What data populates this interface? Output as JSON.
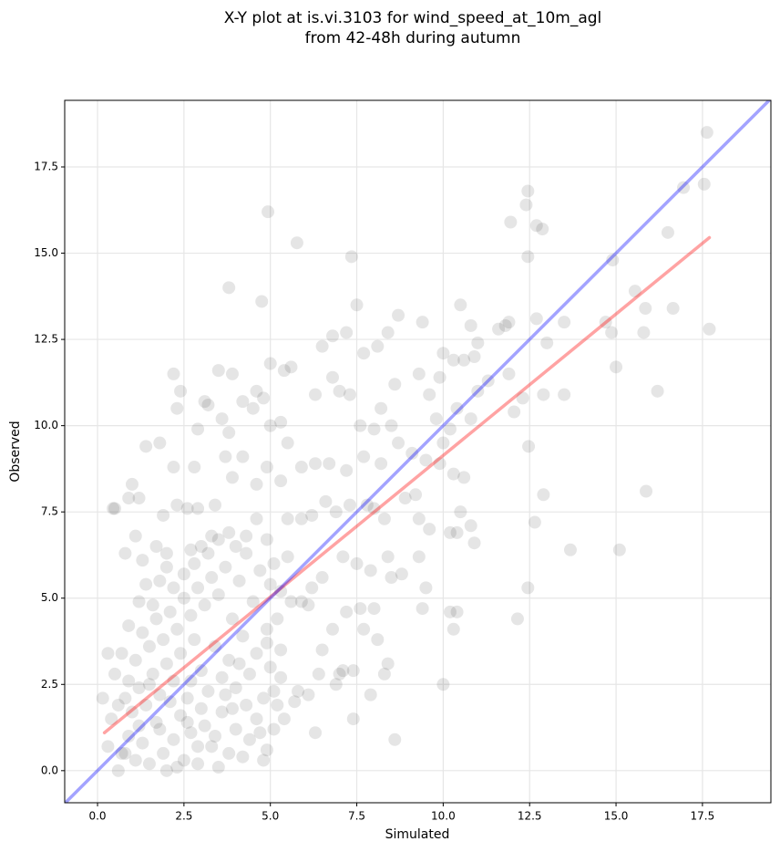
{
  "chart_data": {
    "type": "scatter",
    "title": [
      "X-Y plot at is.vi.3103 for wind_speed_at_10m_agl",
      "from 42-48h during autumn"
    ],
    "xlabel": "Simulated",
    "ylabel": "Observed",
    "xlim": [
      -0.95,
      19.48
    ],
    "ylim": [
      -0.93,
      19.43
    ],
    "xticks": [
      {
        "value": 0,
        "label": "0.0"
      },
      2.5,
      {
        "value": 5,
        "label": "5.0"
      },
      7.5,
      {
        "value": 10,
        "label": "10.0"
      },
      12.5,
      {
        "value": 15,
        "label": "15.0"
      },
      17.5
    ],
    "yticks": [
      {
        "value": 0,
        "label": "0.0"
      },
      2.5,
      {
        "value": 5,
        "label": "5.0"
      },
      7.5,
      {
        "value": 10,
        "label": "10.0"
      },
      12.5,
      {
        "value": 15,
        "label": "15.0"
      },
      17.5
    ],
    "grid": true,
    "series": [
      {
        "type": "scatter",
        "color": "#0000001a",
        "x": [
          17.63,
          17.55,
          17.7,
          16.95,
          16.65,
          16.5,
          15.85,
          15.8,
          15.87,
          16.2,
          15.55,
          14.9,
          14.87,
          15.0,
          15.1,
          14.7,
          13.68,
          13.5,
          13.5,
          13.0,
          12.9,
          12.9,
          12.87,
          12.7,
          12.65,
          12.45,
          12.4,
          12.45,
          12.47,
          12.45,
          12.15,
          11.95,
          12.05,
          10.0,
          8.6,
          4.93,
          5.77,
          7.35,
          3.8,
          4.75,
          7.5,
          2.2,
          0.15,
          0.45,
          1.4,
          6.5,
          6.8,
          7.2,
          7.7,
          8.1,
          8.4,
          8.7,
          9.4,
          10.0,
          10.5,
          10.8,
          11.0,
          11.3,
          11.6,
          11.8,
          11.9,
          12.7,
          12.3,
          11.9,
          10.3,
          10.6,
          10.9,
          11.0,
          10.8,
          10.4,
          10.2,
          10.0,
          9.8,
          9.6,
          9.9,
          9.3,
          8.6,
          8.2,
          8.5,
          8.0,
          7.6,
          7.3,
          7.0,
          6.8,
          6.3,
          5.6,
          5.4,
          5.0,
          4.6,
          4.2,
          3.9,
          3.5,
          3.1,
          3.6,
          3.8,
          4.5,
          4.8,
          5.0,
          5.3,
          5.5,
          5.9,
          6.3,
          6.7,
          7.2,
          7.7,
          8.2,
          8.7,
          9.1,
          9.5,
          9.9,
          10.3,
          10.6,
          10.8,
          10.5,
          10.4,
          10.9,
          10.2,
          9.6,
          9.3,
          9.2,
          8.9,
          8.3,
          8.0,
          7.8,
          7.3,
          6.9,
          6.6,
          6.2,
          5.9,
          5.5,
          5.3,
          4.9,
          4.6,
          4.2,
          3.9,
          3.7,
          2.9,
          3.2,
          2.3,
          2.4,
          2.2,
          2.8,
          2.6,
          1.8,
          1.0,
          0.9,
          0.5,
          1.2,
          1.9,
          1.7,
          1.3,
          1.1,
          0.8,
          2.0,
          2.3,
          2.9,
          3.3,
          3.4,
          2.7,
          7.1,
          7.5,
          7.9,
          8.4,
          8.8,
          9.3,
          9.5,
          9.4,
          10.2,
          10.3,
          10.4,
          8.5,
          8.4,
          8.3,
          7.9,
          7.4,
          7.4,
          7.1,
          7.0,
          6.9,
          6.3,
          6.5,
          6.8,
          7.2,
          7.6,
          8.1,
          8.0,
          7.7,
          6.1,
          5.8,
          5.7,
          5.4,
          5.1,
          4.9,
          5.2,
          6.4,
          6.1,
          5.3,
          5.6,
          5.9,
          6.2,
          5.0,
          6.5,
          0.3,
          0.6,
          0.7,
          0.9,
          1.1,
          1.3,
          1.5,
          1.7,
          1.9,
          2.0,
          2.2,
          2.4,
          2.5,
          2.7,
          2.9,
          3.1,
          3.3,
          3.5,
          3.6,
          3.8,
          4.0,
          4.2,
          4.4,
          4.6,
          4.8,
          0.4,
          0.6,
          0.8,
          1.0,
          1.2,
          1.4,
          1.6,
          1.8,
          2.0,
          2.2,
          2.4,
          2.6,
          2.8,
          3.0,
          3.2,
          3.4,
          3.6,
          3.8,
          4.0,
          4.2,
          4.4,
          4.6,
          4.8,
          0.5,
          0.7,
          0.9,
          1.1,
          1.3,
          1.5,
          1.7,
          1.9,
          2.1,
          2.3,
          2.5,
          2.7,
          2.9,
          3.1,
          3.3,
          3.5,
          3.7,
          3.9,
          4.1,
          4.3,
          4.5,
          4.7,
          4.9,
          0.3,
          0.9,
          1.2,
          1.4,
          1.6,
          1.8,
          2.0,
          2.2,
          2.5,
          2.8,
          3.0,
          3.2,
          3.5,
          3.8,
          4.0,
          4.3,
          4.6,
          4.9,
          5.1,
          5.3,
          5.5,
          5.2,
          4.9,
          5.0,
          5.3,
          5.1,
          4.7,
          3.9,
          3.4,
          2.9,
          2.3,
          1.8,
          1.2,
          0.8,
          2.6,
          3.0,
          3.7,
          4.3,
          4.1,
          2.1,
          1.5,
          2.7
        ],
        "values": [
          18.5,
          17.0,
          12.8,
          16.9,
          13.4,
          15.6,
          13.4,
          12.7,
          8.1,
          11.0,
          13.9,
          14.8,
          12.7,
          11.7,
          6.4,
          13.0,
          6.4,
          10.9,
          13.0,
          12.4,
          8.0,
          10.9,
          15.7,
          15.8,
          7.2,
          16.8,
          16.4,
          14.9,
          9.4,
          5.3,
          4.4,
          15.9,
          10.4,
          2.5,
          0.9,
          16.2,
          15.3,
          14.9,
          14.0,
          13.6,
          13.5,
          11.5,
          2.1,
          7.6,
          9.4,
          12.3,
          12.6,
          12.7,
          12.1,
          12.3,
          12.7,
          13.2,
          13.0,
          12.1,
          13.5,
          12.9,
          12.4,
          11.3,
          12.8,
          12.9,
          13.0,
          13.1,
          10.8,
          11.5,
          11.9,
          11.9,
          12.0,
          11.0,
          10.2,
          10.5,
          9.9,
          9.5,
          10.2,
          10.9,
          11.4,
          11.5,
          11.2,
          10.5,
          10.0,
          9.9,
          10.0,
          10.9,
          11.0,
          11.4,
          10.9,
          11.7,
          11.6,
          11.8,
          11.0,
          10.7,
          11.5,
          11.6,
          10.7,
          10.2,
          9.8,
          10.5,
          10.8,
          10.0,
          10.1,
          9.5,
          8.8,
          8.9,
          8.9,
          8.7,
          9.1,
          8.9,
          9.5,
          9.2,
          9.0,
          8.9,
          8.6,
          8.5,
          7.1,
          7.5,
          6.9,
          6.6,
          6.9,
          7.0,
          7.3,
          8.0,
          7.9,
          7.3,
          7.6,
          7.7,
          7.7,
          7.5,
          7.8,
          7.4,
          7.3,
          7.3,
          8.4,
          8.8,
          8.3,
          9.1,
          8.5,
          9.1,
          9.9,
          10.6,
          10.5,
          11.0,
          8.8,
          8.8,
          7.6,
          9.5,
          8.3,
          7.9,
          7.6,
          7.9,
          7.4,
          6.5,
          6.1,
          6.8,
          6.3,
          6.3,
          7.7,
          7.6,
          6.8,
          7.7,
          6.4,
          6.2,
          6.0,
          5.8,
          6.2,
          5.7,
          6.2,
          5.3,
          4.7,
          4.6,
          4.1,
          4.6,
          5.6,
          3.1,
          2.8,
          2.2,
          1.5,
          2.9,
          2.9,
          2.8,
          2.5,
          1.1,
          3.5,
          4.1,
          4.6,
          4.7,
          3.8,
          4.7,
          4.1,
          4.8,
          2.3,
          2.0,
          1.5,
          1.2,
          0.6,
          1.9,
          2.8,
          2.2,
          3.5,
          4.9,
          4.9,
          5.3,
          5.4,
          5.6,
          0.7,
          0.0,
          0.5,
          1.0,
          0.3,
          0.8,
          0.2,
          1.4,
          0.5,
          0.0,
          0.9,
          1.6,
          0.3,
          1.1,
          0.2,
          1.3,
          0.7,
          0.1,
          1.7,
          0.5,
          1.2,
          0.4,
          0.9,
          1.5,
          0.3,
          1.5,
          1.9,
          2.1,
          1.7,
          2.4,
          1.9,
          2.8,
          2.2,
          3.1,
          2.6,
          3.4,
          2.1,
          3.8,
          2.9,
          2.3,
          3.6,
          2.7,
          3.2,
          2.4,
          3.9,
          2.8,
          3.4,
          2.1,
          2.8,
          3.4,
          2.6,
          3.2,
          4.0,
          3.6,
          4.4,
          3.8,
          4.6,
          4.1,
          5.0,
          4.5,
          5.3,
          4.8,
          5.6,
          5.1,
          5.9,
          4.4,
          5.5,
          6.3,
          4.9,
          5.8,
          4.1,
          3.4,
          4.2,
          4.9,
          5.4,
          4.8,
          5.5,
          5.9,
          5.3,
          5.7,
          6.0,
          6.5,
          6.3,
          6.7,
          6.9,
          6.5,
          6.8,
          7.3,
          6.7,
          6.0,
          5.2,
          6.2,
          4.4,
          3.7,
          3.0,
          2.7,
          2.3,
          1.1,
          1.8,
          1.0,
          0.7,
          0.1,
          1.2,
          1.3,
          0.5,
          1.4,
          1.8,
          2.2,
          1.9,
          3.1,
          2.0,
          2.5,
          2.6
        ]
      },
      {
        "type": "line",
        "color": "#ff00005c",
        "x": [
          0.2,
          17.7
        ],
        "values": [
          1.1,
          15.45
        ]
      },
      {
        "type": "line",
        "color": "#0000ff5c",
        "x": [
          -0.95,
          19.43
        ],
        "values": [
          -0.95,
          19.43
        ]
      }
    ]
  }
}
